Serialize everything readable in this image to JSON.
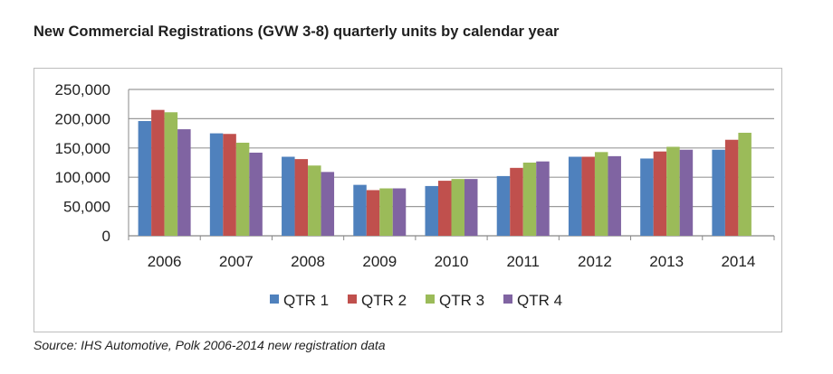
{
  "title": "New Commercial Registrations (GVW 3-8) quarterly units by calendar year",
  "source": "Source: IHS Automotive, Polk 2006-2014 new registration data",
  "chart_data": {
    "type": "bar",
    "categories": [
      "2006",
      "2007",
      "2008",
      "2009",
      "2010",
      "2011",
      "2012",
      "2013",
      "2014"
    ],
    "series": [
      {
        "name": "QTR 1",
        "color": "#4f81bd",
        "values": [
          196000,
          175000,
          135000,
          87000,
          85000,
          102000,
          135000,
          132000,
          147000
        ]
      },
      {
        "name": "QTR 2",
        "color": "#c0504d",
        "values": [
          215000,
          174000,
          131000,
          78000,
          94000,
          116000,
          135000,
          144000,
          164000
        ]
      },
      {
        "name": "QTR 3",
        "color": "#9bbb59",
        "values": [
          211000,
          159000,
          120000,
          81000,
          97000,
          125000,
          143000,
          152000,
          176000
        ]
      },
      {
        "name": "QTR 4",
        "color": "#8064a2",
        "values": [
          182000,
          142000,
          109000,
          81000,
          97000,
          127000,
          136000,
          147000,
          null
        ]
      }
    ],
    "ylim": [
      0,
      250000
    ],
    "yticks": [
      "0",
      "50,000",
      "100,000",
      "150,000",
      "200,000",
      "250,000"
    ],
    "grid": true,
    "legend": "bottom",
    "xlabel": "",
    "ylabel": ""
  }
}
